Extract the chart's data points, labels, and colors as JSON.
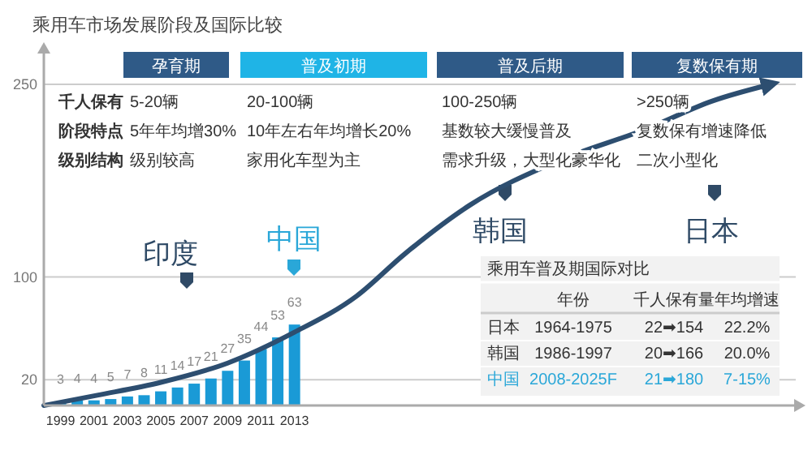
{
  "chart_data": {
    "type": "bar",
    "title": "乘用车市场发展阶段及国际比较",
    "xlim": [
      1998,
      2043
    ],
    "xticks": [
      1999,
      2001,
      2003,
      2005,
      2007,
      2009,
      2011,
      2013
    ],
    "ylim": [
      0,
      250
    ],
    "yticks": [
      20,
      100,
      250
    ],
    "grid": "y",
    "series": [
      {
        "color": "#1a9ad6",
        "x": [
          1999,
          2000,
          2001,
          2002,
          2003,
          2004,
          2005,
          2006,
          2007,
          2008,
          2009,
          2010,
          2011,
          2012,
          2013
        ],
        "values": [
          3,
          4,
          4,
          5,
          7,
          8,
          11,
          14,
          17,
          21,
          27,
          35,
          44,
          53,
          63
        ],
        "value_labels": [
          "3",
          "4",
          "4",
          "5",
          "7",
          "8",
          "11",
          "14",
          "17",
          "21",
          "27",
          "35",
          "44",
          "53",
          "63"
        ]
      },
      {
        "type": "line",
        "color": "#2d4e70",
        "marker": "none",
        "line_style": "solid",
        "x": [
          1998,
          2001.2,
          2005,
          2009,
          2013,
          2016.7,
          2019.6,
          2023.5,
          2028.7,
          2034,
          2038,
          2041.5
        ],
        "values": [
          0,
          8,
          18,
          33,
          57,
          85,
          118,
          156,
          190,
          215,
          237,
          250
        ]
      }
    ],
    "annotations": [
      "孕育期",
      "普及初期",
      "普及后期",
      "复数保有期",
      "千人保有",
      "阶段特点",
      "级别结构",
      "5-20辆",
      "5年年均增30%",
      "级别较高",
      "20-100辆",
      "10年左右年均增长20%",
      "家用化车型为主",
      "100-250辆",
      "基数较大缓慢普及",
      "需求升级，大型化豪华化",
      ">250辆",
      "复数保有增速降低",
      "二次小型化",
      "印度",
      "中国",
      "韩国",
      "日本",
      "乘用车普及期国际对比",
      "年份",
      "千人保有量",
      "年均增速",
      "日本",
      "1964-1975",
      "22➡154",
      "22.2%",
      "韩国",
      "1986-1997",
      "20➡166",
      "20.0%",
      "中国",
      "2008-2025F",
      "21➡180",
      "7-15%"
    ]
  }
}
